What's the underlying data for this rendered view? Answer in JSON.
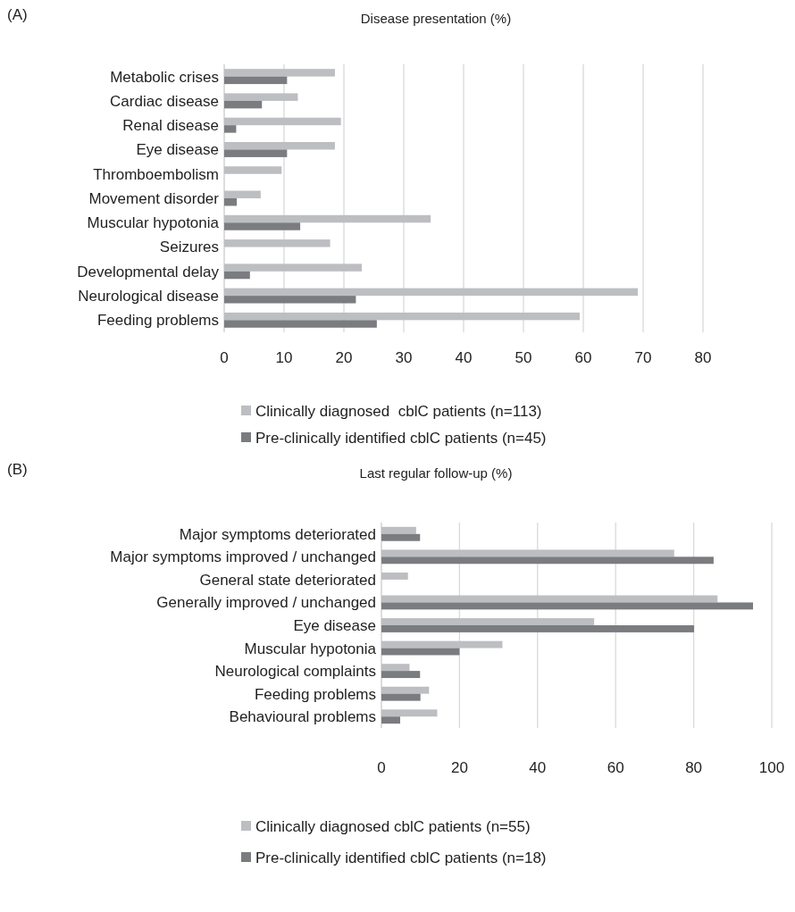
{
  "chart_data": [
    {
      "type": "bar",
      "orientation": "horizontal",
      "title": "Disease presentation (%)",
      "annotations": [
        "(A)"
      ],
      "categories": [
        "Metabolic crises",
        "Cardiac disease",
        "Renal disease",
        "Eye disease",
        "Thromboembolism",
        "Movement disorder",
        "Muscular hypotonia",
        "Seizures",
        "Developmental delay",
        "Neurological disease",
        "Feeding problems"
      ],
      "series": [
        {
          "name": "Clinically diagnosed  cblC patients (n=113)",
          "color": "#bdbec2",
          "values": [
            18.5,
            12.3,
            19.5,
            18.5,
            9.6,
            6.1,
            34.5,
            17.7,
            23.0,
            69.1,
            59.4
          ]
        },
        {
          "name": "Pre-clinically identified cblC patients (n=45)",
          "color": "#7b7c80",
          "values": [
            10.5,
            6.3,
            2.0,
            10.5,
            null,
            2.1,
            12.7,
            null,
            4.3,
            22.0,
            25.5
          ]
        }
      ],
      "xlim": [
        0,
        80
      ],
      "xticks": [
        0,
        10,
        20,
        30,
        40,
        50,
        60,
        70,
        80
      ],
      "grid": "x",
      "legend": "bottom"
    },
    {
      "type": "bar",
      "orientation": "horizontal",
      "title": "Last regular follow-up (%)",
      "annotations": [
        "(B)"
      ],
      "categories": [
        "Major symptoms deteriorated",
        "Major symptoms improved / unchanged",
        "General state deteriorated",
        "Generally improved / unchanged",
        "Eye disease",
        "Muscular hypotonia",
        "Neurological complaints",
        "Feeding problems",
        "Behavioural problems"
      ],
      "series": [
        {
          "name": "Clinically diagnosed cblC patients (n=55)",
          "color": "#bdbec2",
          "values": [
            8.9,
            75.0,
            6.8,
            86.1,
            54.5,
            31.0,
            7.2,
            12.2,
            14.3
          ]
        },
        {
          "name": "Pre-clinically identified cblC patients (n=18)",
          "color": "#7b7c80",
          "values": [
            9.9,
            85.1,
            null,
            95.2,
            80.1,
            20.0,
            9.9,
            10.0,
            4.8
          ]
        }
      ],
      "xlim": [
        0,
        100
      ],
      "xticks": [
        0,
        20,
        40,
        60,
        80,
        100
      ],
      "grid": "x",
      "legend": "bottom"
    }
  ]
}
